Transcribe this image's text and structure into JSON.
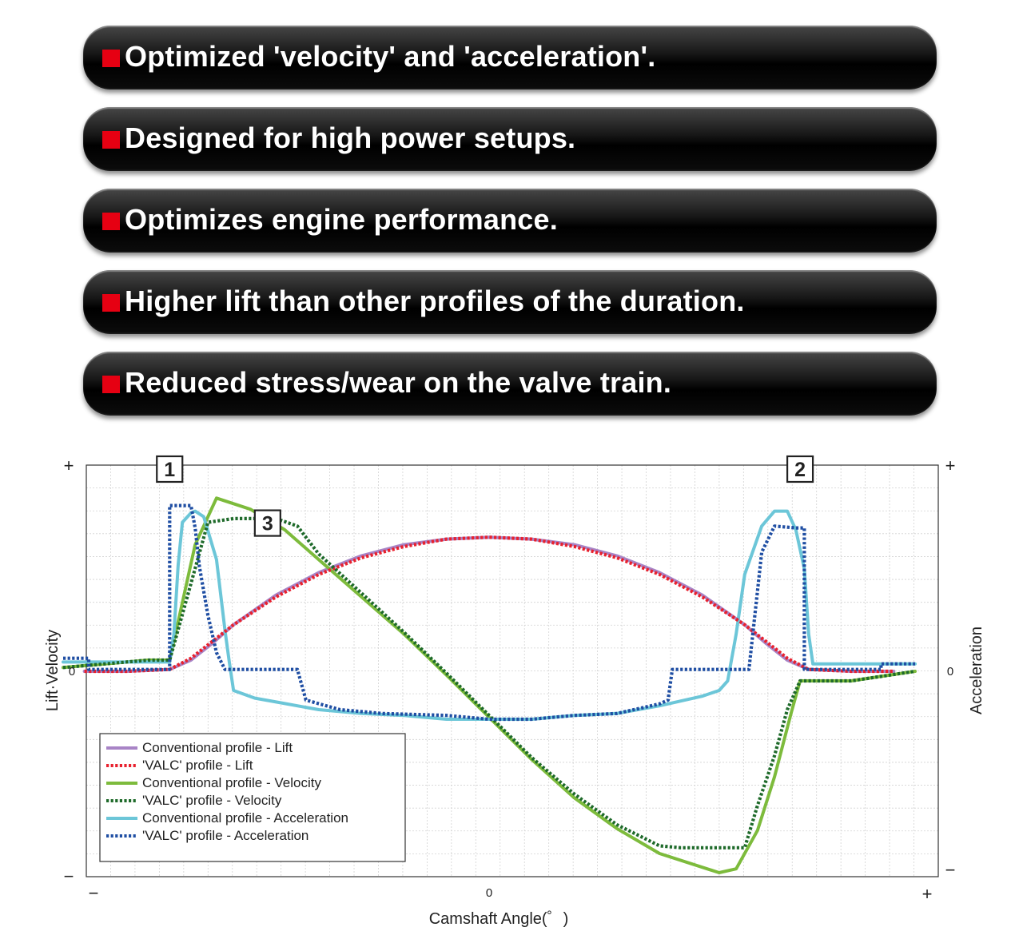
{
  "banners": [
    {
      "text": "Optimized 'velocity' and 'acceleration'."
    },
    {
      "text": "Designed for high power setups."
    },
    {
      "text": "Optimizes engine performance."
    },
    {
      "text": "Higher lift than other profiles of the duration."
    },
    {
      "text": "Reduced stress/wear on the valve train."
    }
  ],
  "colors": {
    "bullet": "#e60012",
    "conventional_lift": "#a884c6",
    "valc_lift": "#e8212e",
    "conventional_velocity": "#7dbb3c",
    "valc_velocity": "#1e6a2a",
    "conventional_acceleration": "#6cc6d8",
    "valc_acceleration": "#1f4ea3"
  },
  "chart_data": {
    "type": "line",
    "xlabel": "Camshaft Angle(゜)",
    "ylabel_left": "Lift·Velocity",
    "ylabel_right": "Acceleration",
    "x_ticks": {
      "min": "−",
      "zero": "0",
      "max": "+"
    },
    "y_left_ticks": {
      "max": "+",
      "zero": "0",
      "min": "−"
    },
    "y_right_ticks": {
      "max": "+",
      "zero": "0",
      "min": "−"
    },
    "xlim": [
      -100,
      100
    ],
    "ylim": [
      -100,
      100
    ],
    "grid": true,
    "legend_position": "bottom-left",
    "callouts": [
      {
        "label": "1",
        "x": -75,
        "y": 100
      },
      {
        "label": "2",
        "x": 73,
        "y": 100
      },
      {
        "label": "3",
        "x": -52,
        "y": 71
      }
    ],
    "series": [
      {
        "name": "Conventional profile - Lift",
        "style": "solid",
        "color_key": "conventional_lift",
        "points": [
          [
            -95,
            0
          ],
          [
            -85,
            0
          ],
          [
            -75,
            1
          ],
          [
            -70,
            6
          ],
          [
            -65,
            15
          ],
          [
            -60,
            25
          ],
          [
            -50,
            41
          ],
          [
            -40,
            53
          ],
          [
            -30,
            62
          ],
          [
            -20,
            68
          ],
          [
            -10,
            71
          ],
          [
            0,
            72
          ],
          [
            10,
            71
          ],
          [
            20,
            68
          ],
          [
            30,
            62
          ],
          [
            40,
            53
          ],
          [
            50,
            41
          ],
          [
            60,
            25
          ],
          [
            65,
            15
          ],
          [
            70,
            6
          ],
          [
            75,
            1
          ],
          [
            85,
            0
          ],
          [
            95,
            0
          ]
        ]
      },
      {
        "name": "'VALC' profile - Lift",
        "style": "dotted",
        "color_key": "valc_lift",
        "points": [
          [
            -95,
            0
          ],
          [
            -85,
            0
          ],
          [
            -75,
            1
          ],
          [
            -70,
            7
          ],
          [
            -65,
            16
          ],
          [
            -60,
            25
          ],
          [
            -50,
            40
          ],
          [
            -40,
            52
          ],
          [
            -30,
            61
          ],
          [
            -20,
            67
          ],
          [
            -10,
            71
          ],
          [
            0,
            72
          ],
          [
            10,
            71
          ],
          [
            20,
            67
          ],
          [
            30,
            61
          ],
          [
            40,
            52
          ],
          [
            50,
            40
          ],
          [
            60,
            25
          ],
          [
            65,
            16
          ],
          [
            70,
            7
          ],
          [
            75,
            1
          ],
          [
            85,
            0
          ],
          [
            95,
            0
          ]
        ]
      },
      {
        "name": "Conventional profile - Velocity",
        "style": "solid",
        "color_key": "conventional_velocity",
        "points": [
          [
            -100,
            2
          ],
          [
            -80,
            6
          ],
          [
            -75,
            6
          ],
          [
            -69,
            68
          ],
          [
            -64,
            93
          ],
          [
            -56,
            87
          ],
          [
            -48,
            76
          ],
          [
            -40,
            60
          ],
          [
            -30,
            40
          ],
          [
            -20,
            20
          ],
          [
            -10,
            -2
          ],
          [
            0,
            -24
          ],
          [
            10,
            -46
          ],
          [
            20,
            -66
          ],
          [
            30,
            -82
          ],
          [
            40,
            -95
          ],
          [
            54,
            -105
          ],
          [
            58,
            -103
          ],
          [
            63,
            -83
          ],
          [
            67,
            -55
          ],
          [
            71,
            -21
          ],
          [
            73,
            -5
          ],
          [
            85,
            -5
          ],
          [
            100,
            0
          ]
        ]
      },
      {
        "name": "'VALC' profile - Velocity",
        "style": "dotted",
        "color_key": "valc_velocity",
        "points": [
          [
            -100,
            2
          ],
          [
            -80,
            6
          ],
          [
            -75,
            6
          ],
          [
            -66,
            80
          ],
          [
            -60,
            82
          ],
          [
            -50,
            82
          ],
          [
            -45,
            78
          ],
          [
            -40,
            63
          ],
          [
            -30,
            42
          ],
          [
            -20,
            21
          ],
          [
            -10,
            -1
          ],
          [
            0,
            -23
          ],
          [
            10,
            -45
          ],
          [
            20,
            -64
          ],
          [
            30,
            -80
          ],
          [
            40,
            -91
          ],
          [
            45,
            -92
          ],
          [
            60,
            -92
          ],
          [
            63,
            -70
          ],
          [
            67,
            -44
          ],
          [
            70,
            -20
          ],
          [
            73,
            -5
          ],
          [
            85,
            -5
          ],
          [
            100,
            0
          ]
        ]
      },
      {
        "name": "Conventional profile - Acceleration",
        "style": "solid",
        "color_key": "conventional_acceleration",
        "points": [
          [
            -100,
            5
          ],
          [
            -75,
            5
          ],
          [
            -74,
            20
          ],
          [
            -73,
            57
          ],
          [
            -72,
            80
          ],
          [
            -70,
            85
          ],
          [
            -69,
            86
          ],
          [
            -67,
            83
          ],
          [
            -64,
            60
          ],
          [
            -62,
            22
          ],
          [
            -61,
            5
          ],
          [
            -60,
            -10
          ],
          [
            -55,
            -14
          ],
          [
            -50,
            -16
          ],
          [
            -40,
            -20
          ],
          [
            -30,
            -22
          ],
          [
            -20,
            -23
          ],
          [
            -10,
            -25
          ],
          [
            0,
            -25
          ],
          [
            10,
            -25
          ],
          [
            20,
            -23
          ],
          [
            30,
            -22
          ],
          [
            40,
            -18
          ],
          [
            50,
            -13
          ],
          [
            54,
            -10
          ],
          [
            56,
            -5
          ],
          [
            58,
            20
          ],
          [
            60,
            52
          ],
          [
            64,
            78
          ],
          [
            67,
            86
          ],
          [
            70,
            86
          ],
          [
            72,
            76
          ],
          [
            74,
            55
          ],
          [
            75,
            20
          ],
          [
            76,
            4
          ],
          [
            80,
            4
          ],
          [
            100,
            4
          ]
        ]
      },
      {
        "name": "'VALC' profile - Acceleration",
        "style": "dotted",
        "color_key": "valc_acceleration",
        "points": [
          [
            -100,
            7
          ],
          [
            -94,
            7
          ],
          [
            -94,
            1
          ],
          [
            -75,
            1
          ],
          [
            -75,
            89
          ],
          [
            -70,
            89
          ],
          [
            -69,
            77
          ],
          [
            -68,
            56
          ],
          [
            -66,
            30
          ],
          [
            -64,
            10
          ],
          [
            -62,
            1
          ],
          [
            -45,
            1
          ],
          [
            -43,
            -15
          ],
          [
            -35,
            -20
          ],
          [
            -25,
            -22
          ],
          [
            -10,
            -23
          ],
          [
            0,
            -25
          ],
          [
            10,
            -25
          ],
          [
            20,
            -23
          ],
          [
            30,
            -22
          ],
          [
            40,
            -17
          ],
          [
            42,
            -15
          ],
          [
            43,
            1
          ],
          [
            61,
            1
          ],
          [
            64,
            64
          ],
          [
            67,
            78
          ],
          [
            72,
            77
          ],
          [
            74,
            77
          ],
          [
            74,
            1
          ],
          [
            92,
            1
          ],
          [
            92,
            4
          ],
          [
            100,
            4
          ]
        ]
      }
    ]
  }
}
